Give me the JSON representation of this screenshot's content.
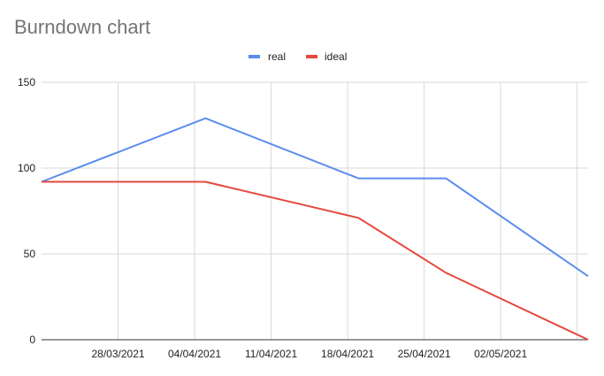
{
  "chart_data": {
    "type": "line",
    "title": "Burndown chart",
    "xlabel": "",
    "ylabel": "",
    "x": [
      "2021-03-21",
      "2021-04-05",
      "2021-04-19",
      "2021-04-27",
      "2021-05-10"
    ],
    "x_tick_labels": [
      "28/03/2021",
      "04/04/2021",
      "11/04/2021",
      "18/04/2021",
      "25/04/2021",
      "02/05/2021"
    ],
    "x_tick_dates": [
      "2021-03-28",
      "2021-04-04",
      "2021-04-11",
      "2021-04-18",
      "2021-04-25",
      "2021-05-02"
    ],
    "xlim": [
      "2021-03-21",
      "2021-05-10"
    ],
    "ylim": [
      0,
      150
    ],
    "y_ticks": [
      0,
      50,
      100,
      150
    ],
    "grid": true,
    "legend_position": "top-center",
    "series": [
      {
        "name": "real",
        "color": "#5b8def",
        "values": [
          92,
          129,
          94,
          94,
          37
        ]
      },
      {
        "name": "ideal",
        "color": "#e5483c",
        "values": [
          92,
          92,
          71,
          39,
          0
        ]
      }
    ]
  }
}
